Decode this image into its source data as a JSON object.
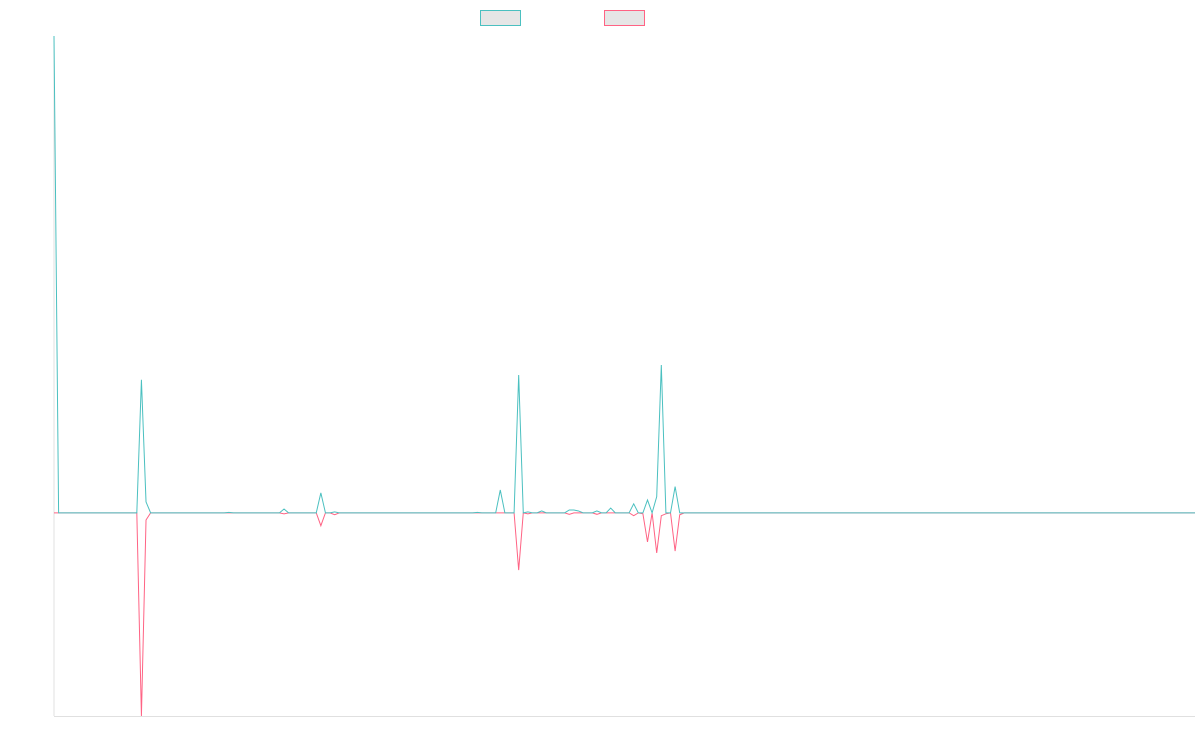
{
  "chart_data": {
    "type": "line",
    "title": "",
    "xlabel": "",
    "ylabel": "",
    "ylim": [
      -42.6,
      100
    ],
    "grid": false,
    "legend_placement": "top",
    "series": [
      {
        "color": "#4bc0c0",
        "values": [
          100,
          0,
          0,
          0,
          0,
          0,
          0,
          0,
          0,
          0,
          0,
          0,
          0,
          0,
          0,
          0,
          0,
          0,
          0,
          27.9,
          2.3,
          0,
          0,
          0,
          0,
          0,
          0,
          0,
          0,
          0,
          0,
          0,
          0,
          0,
          0,
          0,
          0,
          0,
          0.1,
          0,
          0,
          0,
          0,
          0,
          0,
          0,
          0,
          0,
          0,
          0,
          0.8,
          0,
          0,
          0,
          0,
          0,
          0,
          0,
          4.2,
          0,
          0,
          0.2,
          0,
          0,
          0,
          0,
          0,
          0,
          0,
          0,
          0,
          0,
          0,
          0,
          0,
          0,
          0,
          0,
          0,
          0,
          0,
          0,
          0,
          0,
          0,
          0,
          0,
          0,
          0,
          0,
          0,
          0,
          0.1,
          0,
          0,
          0,
          0,
          4.8,
          0,
          0,
          0,
          28.9,
          0,
          0.2,
          0,
          0,
          0.4,
          0,
          0,
          0,
          0,
          0,
          0.6,
          0.6,
          0.4,
          0,
          0,
          0,
          0.4,
          0,
          0,
          1.0,
          0,
          0,
          0,
          0,
          1.9,
          0,
          0,
          2.7,
          0,
          3.4,
          31.0,
          0,
          0,
          5.5,
          0,
          0,
          0,
          0,
          0,
          0,
          0,
          0,
          0,
          0,
          0,
          0,
          0,
          0,
          0,
          0,
          0,
          0,
          0,
          0,
          0,
          0,
          0,
          0,
          0,
          0,
          0,
          0,
          0,
          0,
          0,
          0,
          0,
          0,
          0,
          0,
          0,
          0,
          0,
          0,
          0,
          0,
          0,
          0,
          0,
          0,
          0,
          0,
          0,
          0,
          0,
          0,
          0,
          0,
          0,
          0,
          0,
          0,
          0,
          0,
          0,
          0,
          0,
          0,
          0,
          0,
          0,
          0,
          0,
          0,
          0,
          0,
          0,
          0,
          0,
          0,
          0,
          0,
          0,
          0,
          0,
          0,
          0,
          0,
          0,
          0,
          0,
          0,
          0,
          0,
          0,
          0,
          0,
          0,
          0,
          0,
          0,
          0,
          0,
          0,
          0,
          0,
          0,
          0,
          0,
          0,
          0,
          0,
          0,
          0,
          0,
          0,
          0
        ]
      },
      {
        "color": "#ff6384",
        "values": [
          0,
          0,
          0,
          0,
          0,
          0,
          0,
          0,
          0,
          0,
          0,
          0,
          0,
          0,
          0,
          0,
          0,
          0,
          0,
          -42.6,
          -1.5,
          0,
          0,
          0,
          0,
          0,
          0,
          0,
          0,
          0,
          0,
          0,
          0,
          0,
          0,
          0,
          0,
          0,
          0,
          0,
          0,
          0,
          0,
          0,
          0,
          0,
          0,
          0,
          0,
          0,
          -0.2,
          0,
          0,
          0,
          0,
          0,
          0,
          0,
          -2.7,
          0,
          0,
          -0.4,
          0,
          0,
          0,
          0,
          0,
          0,
          0,
          0,
          0,
          0,
          0,
          0,
          0,
          0,
          0,
          0,
          0,
          0,
          0,
          0,
          0,
          0,
          0,
          0,
          0,
          0,
          0,
          0,
          0,
          0,
          0,
          0,
          0,
          0,
          0,
          0,
          0,
          0,
          0,
          -12,
          0,
          -0.2,
          0,
          0,
          0,
          0,
          0,
          0,
          0,
          0,
          -0.3,
          0,
          0,
          0,
          0,
          0,
          -0.3,
          0,
          0,
          0,
          0,
          0,
          0,
          0,
          -0.6,
          0,
          -0.2,
          -6.1,
          0,
          -8.4,
          -0.6,
          -0.2,
          0,
          -8.0,
          -0.4,
          0,
          0,
          0,
          0,
          0,
          0,
          0,
          0,
          0,
          0,
          0,
          0,
          0,
          0,
          0,
          0,
          0,
          0,
          0,
          0,
          0,
          0,
          0,
          0,
          0,
          0,
          0,
          0,
          0,
          0,
          0,
          0,
          0,
          0,
          0,
          0,
          0,
          0,
          0,
          0,
          0,
          0,
          0,
          0,
          0,
          0,
          0,
          0,
          0,
          0,
          0,
          0,
          0,
          0,
          0,
          0,
          0,
          0,
          0,
          0,
          0,
          0,
          0,
          0,
          0,
          0,
          0,
          0,
          0,
          0,
          0,
          0,
          0,
          0,
          0,
          0,
          0,
          0,
          0,
          0,
          0,
          0,
          0,
          0,
          0,
          0,
          0,
          0,
          0,
          0,
          0,
          0,
          0,
          0,
          0,
          0,
          0,
          0,
          0,
          0,
          0,
          0,
          0,
          0,
          0,
          0,
          0,
          0,
          0,
          0,
          0,
          0
        ]
      }
    ],
    "legend_swatch_fill": "#e6e6e6"
  }
}
